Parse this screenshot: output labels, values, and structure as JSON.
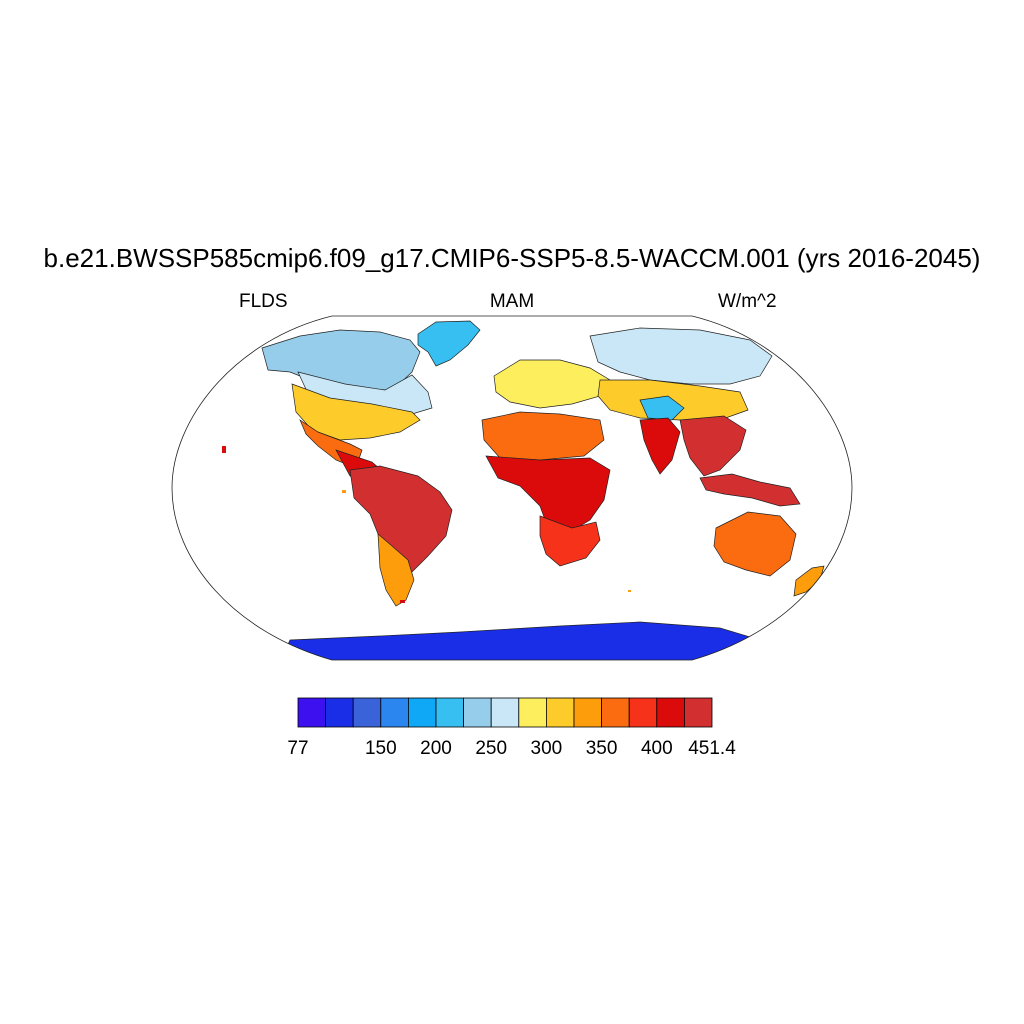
{
  "title": "b.e21.BWSSP585cmip6.f09_g17.CMIP6-SSP5-8.5-WACCM.001 (yrs 2016-2045)",
  "left_label": "FLDS",
  "center_label": "MAM",
  "right_label": "W/m^2",
  "colorbar": {
    "min": 77,
    "max": 451.4,
    "tick_labels": [
      "77",
      "150",
      "200",
      "250",
      "300",
      "350",
      "400",
      "451.4"
    ],
    "colors": [
      "#3d10f0",
      "#1a2ee8",
      "#3b63d9",
      "#2c86ef",
      "#0ea8f6",
      "#38bff2",
      "#95cdeb",
      "#c9e7f6",
      "#fdee5e",
      "#fdcc2a",
      "#fd9d0c",
      "#fb6c10",
      "#f6321a",
      "#dc0b0b",
      "#d22f31"
    ]
  },
  "map": {
    "projection": "Robinson",
    "regions": [
      {
        "name": "greenland",
        "level": 5
      },
      {
        "name": "north-america-north",
        "level": 6
      },
      {
        "name": "canada",
        "level": 7
      },
      {
        "name": "usa",
        "level": 9
      },
      {
        "name": "mexico",
        "level": 11
      },
      {
        "name": "central-america",
        "level": 13
      },
      {
        "name": "south-america",
        "level": 14
      },
      {
        "name": "south-america-south",
        "level": 10
      },
      {
        "name": "europe",
        "level": 8
      },
      {
        "name": "siberia",
        "level": 7
      },
      {
        "name": "asia-mid",
        "level": 9
      },
      {
        "name": "tibet",
        "level": 5
      },
      {
        "name": "north-africa",
        "level": 11
      },
      {
        "name": "central-africa",
        "level": 13
      },
      {
        "name": "southern-africa",
        "level": 12
      },
      {
        "name": "india",
        "level": 13
      },
      {
        "name": "southeast-asia",
        "level": 14
      },
      {
        "name": "indonesia",
        "level": 14
      },
      {
        "name": "australia",
        "level": 11
      },
      {
        "name": "new-zealand",
        "level": 10
      },
      {
        "name": "antarctica",
        "level": 1
      }
    ]
  }
}
